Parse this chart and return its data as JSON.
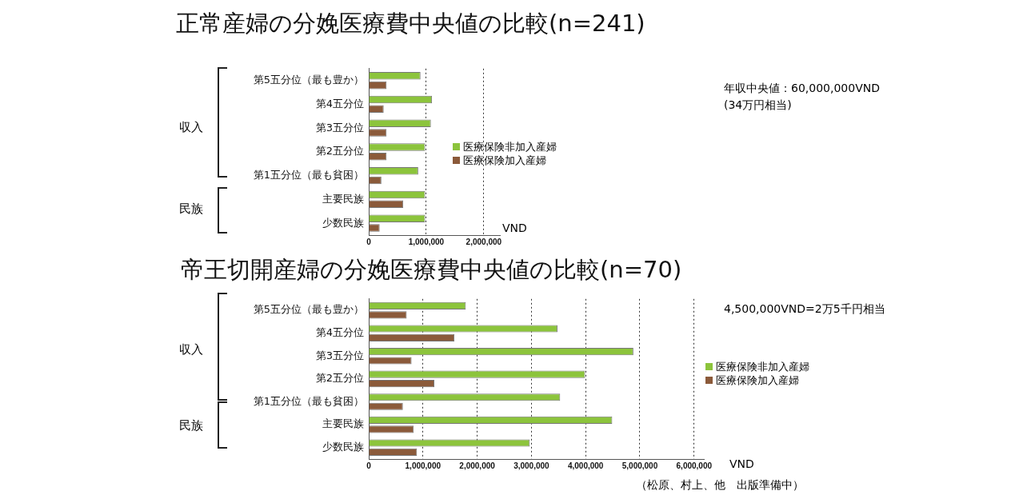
{
  "chart_data": [
    {
      "type": "bar",
      "orientation": "horizontal",
      "title": "正常産婦の分娩医療費中央値の比較(n=241)",
      "xlabel": "VND",
      "categories": [
        "第5五分位（最も豊か）",
        "第4五分位",
        "第3五分位",
        "第2五分位",
        "第1五分位（最も貧困）",
        "主要民族",
        "少数民族"
      ],
      "series": [
        {
          "name": "医療保険非加入産婦",
          "color": "#8cc43c",
          "values": [
            900000,
            1100000,
            1080000,
            980000,
            860000,
            980000,
            980000
          ]
        },
        {
          "name": "医療保険加入産婦",
          "color": "#8b5a3a",
          "values": [
            310000,
            260000,
            310000,
            310000,
            220000,
            600000,
            190000
          ]
        }
      ],
      "xlim": [
        0,
        2280000
      ],
      "xticks": [
        0,
        {
          "value": 1000000,
          "label": "1,000,000"
        },
        {
          "value": 2000000,
          "label": "2,000,000"
        }
      ],
      "grid": "x",
      "legend": "right",
      "annotations": [
        "収入",
        "民族",
        "年収中央値：60,000,000VND\n(34万円相当)"
      ]
    },
    {
      "type": "bar",
      "orientation": "horizontal",
      "title": "帝王切開産婦の分娩医療費中央値の比較(n=70)",
      "xlabel": "VND",
      "categories": [
        "第5五分位（最も豊か）",
        "第4五分位",
        "第3五分位",
        "第2五分位",
        "第1五分位（最も貧困）",
        "主要民族",
        "少数民族"
      ],
      "series": [
        {
          "name": "医療保険非加入産婦",
          "color": "#8cc43c",
          "values": [
            1790000,
            3480000,
            4880000,
            3990000,
            3530000,
            4490000,
            2970000
          ]
        },
        {
          "name": "医療保険加入産婦",
          "color": "#8b5a3a",
          "values": [
            700000,
            1580000,
            790000,
            1210000,
            630000,
            830000,
            890000
          ]
        }
      ],
      "xlim": [
        0,
        6180000
      ],
      "xticks": [
        0,
        {
          "value": 1000000,
          "label": "1,000,000"
        },
        {
          "value": 2000000,
          "label": "2,000,000"
        },
        {
          "value": 3000000,
          "label": "3,000,000"
        },
        {
          "value": 4000000,
          "label": "4,000,000"
        },
        {
          "value": 5000000,
          "label": "5,000,000"
        },
        {
          "value": 6000000,
          "label": "6,000,000"
        }
      ],
      "grid": "x",
      "legend": "right",
      "annotations": [
        "収入",
        "民族",
        "4,500,000VND=2万5千円相当",
        "（松原、村上、他　出版準備中）"
      ]
    }
  ]
}
